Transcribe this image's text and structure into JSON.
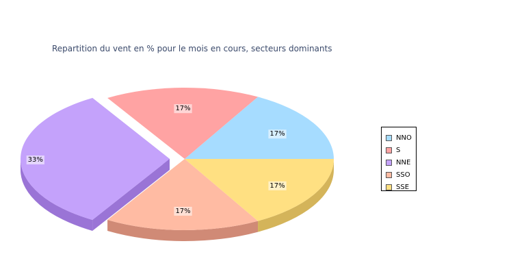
{
  "chart_data": {
    "type": "pie",
    "title": "Repartition du vent en % pour le mois en cours, secteurs dominants",
    "slices": [
      {
        "name": "NNO",
        "value": 17,
        "label": "17%",
        "color": "#a6dcff",
        "side": "#6eaed0"
      },
      {
        "name": "S",
        "value": 17,
        "label": "17%",
        "color": "#ffa3a3",
        "side": "#cc6e6e"
      },
      {
        "name": "NNE",
        "value": 33,
        "label": "33%",
        "color": "#c4a2fb",
        "side": "#9a74d6",
        "exploded": true
      },
      {
        "name": "SSO",
        "value": 17,
        "label": "17%",
        "color": "#ffbba3",
        "side": "#d08a76"
      },
      {
        "name": "SSE",
        "value": 17,
        "label": "17%",
        "color": "#ffe082",
        "side": "#d4b45a"
      }
    ],
    "legend_placement": "right"
  }
}
